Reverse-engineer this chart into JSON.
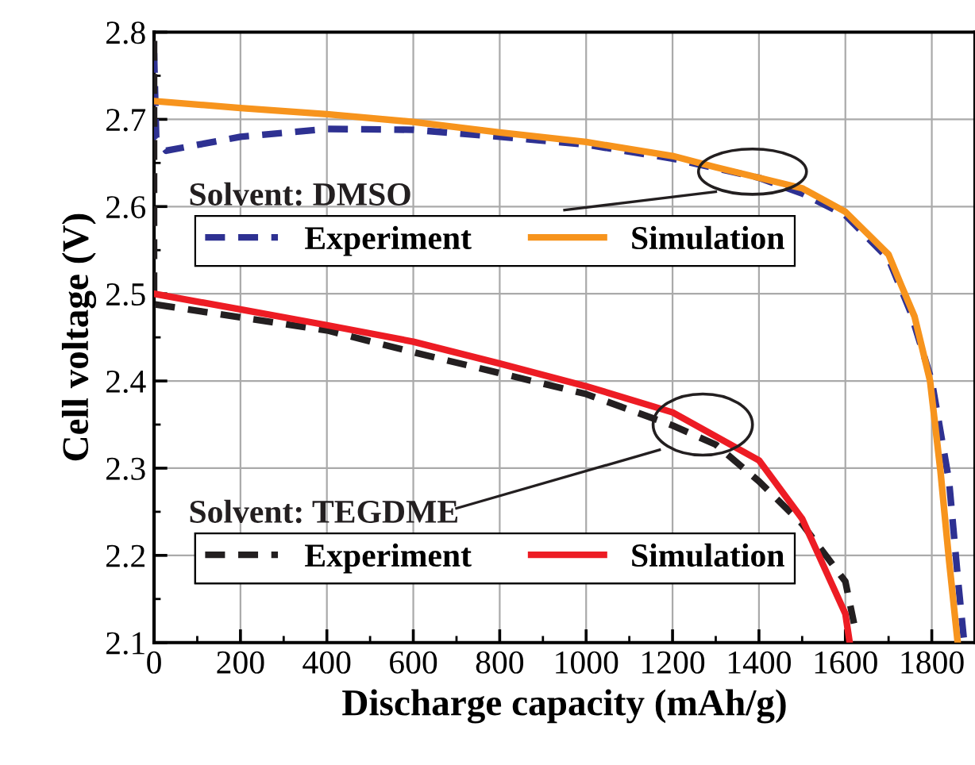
{
  "chart_data": {
    "type": "line",
    "xlabel": "Discharge capacity (mAh/g)",
    "ylabel": "Cell voltage (V)",
    "xlim": [
      0,
      1890
    ],
    "xticks": [
      0,
      200,
      400,
      600,
      800,
      1000,
      1200,
      1400,
      1600,
      1800
    ],
    "ylim": [
      2.1,
      2.8
    ],
    "yticks": [
      2.1,
      2.2,
      2.3,
      2.4,
      2.5,
      2.6,
      2.7,
      2.8
    ],
    "grid": true,
    "legend": "left",
    "annotations": [
      "Solvent: DMSO",
      "Solvent: TEGDME"
    ],
    "series": [
      {
        "name": "Experiment",
        "color": "#2e3192",
        "line_style": "dashed",
        "x": [
          0,
          5,
          28,
          200,
          400,
          600,
          800,
          1000,
          1200,
          1400,
          1500,
          1600,
          1700,
          1750,
          1800,
          1840,
          1861,
          1875
        ],
        "values": [
          2.776,
          2.679,
          2.664,
          2.68,
          2.689,
          2.688,
          2.68,
          2.671,
          2.655,
          2.633,
          2.615,
          2.59,
          2.54,
          2.48,
          2.4,
          2.285,
          2.17,
          2.1
        ]
      },
      {
        "name": "Simulation",
        "color": "#f7941d",
        "line_style": "solid",
        "x": [
          0,
          200,
          400,
          600,
          800,
          1000,
          1200,
          1300,
          1400,
          1500,
          1600,
          1700,
          1730,
          1760,
          1796,
          1820,
          1840,
          1860
        ],
        "values": [
          2.721,
          2.713,
          2.706,
          2.697,
          2.685,
          2.674,
          2.658,
          2.645,
          2.633,
          2.621,
          2.594,
          2.545,
          2.509,
          2.474,
          2.4,
          2.297,
          2.194,
          2.1
        ]
      },
      {
        "name": "Experiment",
        "color": "#231f20",
        "line_style": "dashed",
        "x": [
          0,
          0,
          200,
          400,
          600,
          800,
          1000,
          1200,
          1300,
          1400,
          1500,
          1600,
          1620
        ],
        "values": [
          2.79,
          2.488,
          2.473,
          2.458,
          2.433,
          2.409,
          2.385,
          2.349,
          2.327,
          2.285,
          2.236,
          2.17,
          2.122
        ]
      },
      {
        "name": "Simulation",
        "color": "#ed1c24",
        "line_style": "solid",
        "x": [
          0,
          200,
          400,
          600,
          800,
          1000,
          1200,
          1400,
          1500,
          1600,
          1610
        ],
        "values": [
          2.5,
          2.482,
          2.464,
          2.445,
          2.42,
          2.394,
          2.364,
          2.309,
          2.242,
          2.133,
          2.1
        ]
      }
    ]
  }
}
